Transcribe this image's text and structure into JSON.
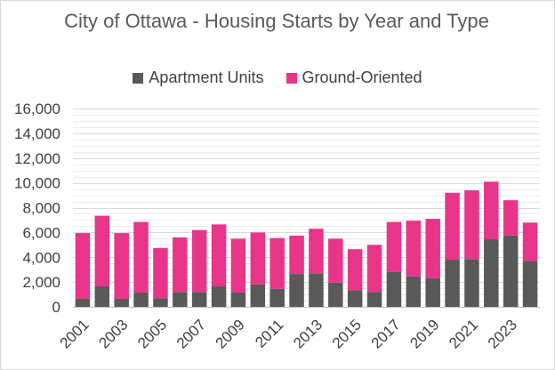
{
  "chart_data": {
    "type": "bar",
    "stacked": true,
    "title": "City of Ottawa - Housing Starts by Year and Type",
    "categories": [
      "2001",
      "2002",
      "2003",
      "2004",
      "2005",
      "2006",
      "2007",
      "2008",
      "2009",
      "2010",
      "2011",
      "2012",
      "2013",
      "2014",
      "2015",
      "2016",
      "2017",
      "2018",
      "2019",
      "2020",
      "2021",
      "2022",
      "2023",
      "2024"
    ],
    "x_tick_labels": [
      "2001",
      "2003",
      "2005",
      "2007",
      "2009",
      "2011",
      "2013",
      "2015",
      "2017",
      "2019",
      "2021",
      "2023"
    ],
    "series": [
      {
        "name": "Apartment Units",
        "color": "#595959",
        "values": [
          650,
          1650,
          650,
          1150,
          700,
          1200,
          1200,
          1650,
          1150,
          1800,
          1450,
          2650,
          2700,
          1950,
          1350,
          1200,
          2800,
          2450,
          2300,
          3800,
          3850,
          5450,
          5750,
          3700
        ]
      },
      {
        "name": "Ground-Oriented",
        "color": "#e8358a",
        "values": [
          5300,
          5700,
          5300,
          5700,
          4050,
          4400,
          5000,
          5000,
          4350,
          4200,
          4100,
          3100,
          3600,
          3550,
          3300,
          3800,
          4050,
          4500,
          4800,
          5400,
          5550,
          4650,
          2850,
          3100
        ]
      }
    ],
    "y_tick_labels": [
      "0",
      "2,000",
      "4,000",
      "6,000",
      "8,000",
      "10,000",
      "12,000",
      "14,000",
      "16,000"
    ],
    "ylim": [
      0,
      16000
    ],
    "grid": true,
    "legend_position": "top"
  }
}
